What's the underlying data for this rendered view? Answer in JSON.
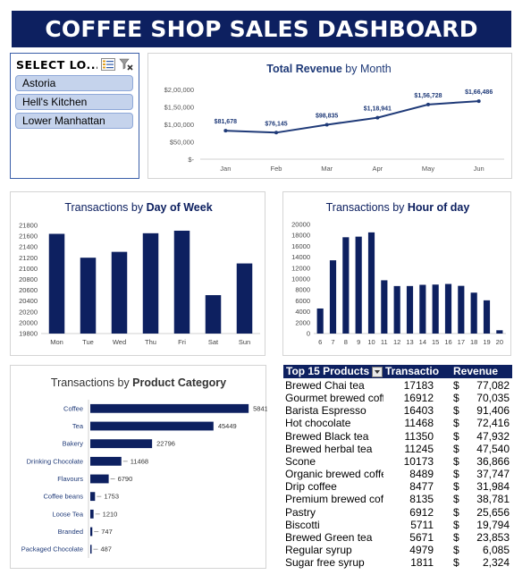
{
  "header": {
    "title": "COFFEE SHOP SALES DASHBOARD"
  },
  "slicer": {
    "title": "SELECT LO...",
    "items": [
      "Astoria",
      "Hell's Kitchen",
      "Lower Manhattan"
    ]
  },
  "chart_data": [
    {
      "id": "revenue",
      "type": "line",
      "title_normal": "",
      "title_bold": "Total Revenue",
      "title_after": " by Month",
      "categories": [
        "Jan",
        "Feb",
        "Mar",
        "Apr",
        "May",
        "Jun"
      ],
      "values": [
        81678,
        76145,
        98835,
        118941,
        156728,
        166486
      ],
      "data_labels": [
        "$81,678",
        "$76,145",
        "$98,835",
        "$1,18,941",
        "$1,56,728",
        "$1,66,486"
      ],
      "ylim": [
        0,
        200000
      ],
      "yticks": [
        "$-",
        "$50,000",
        "$1,00,000",
        "$1,50,000",
        "$2,00,000"
      ],
      "color": "#1f3a78"
    },
    {
      "id": "dow",
      "type": "bar",
      "title_normal": "Transactions by ",
      "title_bold": "Day of Week",
      "categories": [
        "Mon",
        "Tue",
        "Wed",
        "Thu",
        "Fri",
        "Sat",
        "Sun"
      ],
      "values": [
        21643,
        21202,
        21310,
        21654,
        21701,
        20510,
        21096
      ],
      "ylim": [
        19800,
        21800
      ],
      "yticks": [
        "19800",
        "20000",
        "20200",
        "20400",
        "20600",
        "20800",
        "21000",
        "21200",
        "21400",
        "21600",
        "21800"
      ],
      "color": "#0d2060"
    },
    {
      "id": "hour",
      "type": "bar",
      "title_normal": "Transactions by ",
      "title_bold": "Hour of day",
      "categories": [
        "6",
        "7",
        "8",
        "9",
        "10",
        "11",
        "12",
        "13",
        "14",
        "15",
        "16",
        "17",
        "18",
        "19",
        "20"
      ],
      "values": [
        4594,
        13428,
        17654,
        17764,
        18545,
        9766,
        8708,
        8714,
        8933,
        8979,
        9093,
        8745,
        7498,
        6092,
        603
      ],
      "ylim": [
        0,
        20000
      ],
      "yticks": [
        "0",
        "2000",
        "4000",
        "6000",
        "8000",
        "10000",
        "12000",
        "14000",
        "16000",
        "18000",
        "20000"
      ],
      "color": "#0d2060"
    },
    {
      "id": "category",
      "type": "bar",
      "orientation": "horizontal",
      "title_normal": "Transactions by ",
      "title_bold": "Product Category",
      "categories": [
        "Coffee",
        "Tea",
        "Bakery",
        "Drinking Chocolate",
        "Flavours",
        "Coffee beans",
        "Loose Tea",
        "Branded",
        "Packaged Chocolate"
      ],
      "values": [
        58416,
        45449,
        22796,
        11468,
        6790,
        1753,
        1210,
        747,
        487
      ],
      "xlim": [
        0,
        62000
      ],
      "color": "#0d2060"
    }
  ],
  "top_products": {
    "headers": [
      "Top 15 Products",
      "Transactio",
      "Revenue"
    ],
    "rows": [
      {
        "name": "Brewed Chai tea",
        "transactions": "17183",
        "currency": "$",
        "revenue": "77,082"
      },
      {
        "name": "Gourmet brewed coff",
        "transactions": "16912",
        "currency": "$",
        "revenue": "70,035"
      },
      {
        "name": "Barista Espresso",
        "transactions": "16403",
        "currency": "$",
        "revenue": "91,406"
      },
      {
        "name": "Hot chocolate",
        "transactions": "11468",
        "currency": "$",
        "revenue": "72,416"
      },
      {
        "name": "Brewed Black tea",
        "transactions": "11350",
        "currency": "$",
        "revenue": "47,932"
      },
      {
        "name": "Brewed herbal tea",
        "transactions": "11245",
        "currency": "$",
        "revenue": "47,540"
      },
      {
        "name": "Scone",
        "transactions": "10173",
        "currency": "$",
        "revenue": "36,866"
      },
      {
        "name": "Organic brewed coffe",
        "transactions": "8489",
        "currency": "$",
        "revenue": "37,747"
      },
      {
        "name": "Drip coffee",
        "transactions": "8477",
        "currency": "$",
        "revenue": "31,984"
      },
      {
        "name": "Premium brewed cof",
        "transactions": "8135",
        "currency": "$",
        "revenue": "38,781"
      },
      {
        "name": "Pastry",
        "transactions": "6912",
        "currency": "$",
        "revenue": "25,656"
      },
      {
        "name": "Biscotti",
        "transactions": "5711",
        "currency": "$",
        "revenue": "19,794"
      },
      {
        "name": "Brewed Green tea",
        "transactions": "5671",
        "currency": "$",
        "revenue": "23,853"
      },
      {
        "name": "Regular syrup",
        "transactions": "4979",
        "currency": "$",
        "revenue": "6,085"
      },
      {
        "name": "Sugar free syrup",
        "transactions": "1811",
        "currency": "$",
        "revenue": "2,324"
      }
    ]
  },
  "colors": {
    "navy": "#0d2060",
    "slicer_item": "#c5d3ec",
    "line": "#1f3a78"
  }
}
